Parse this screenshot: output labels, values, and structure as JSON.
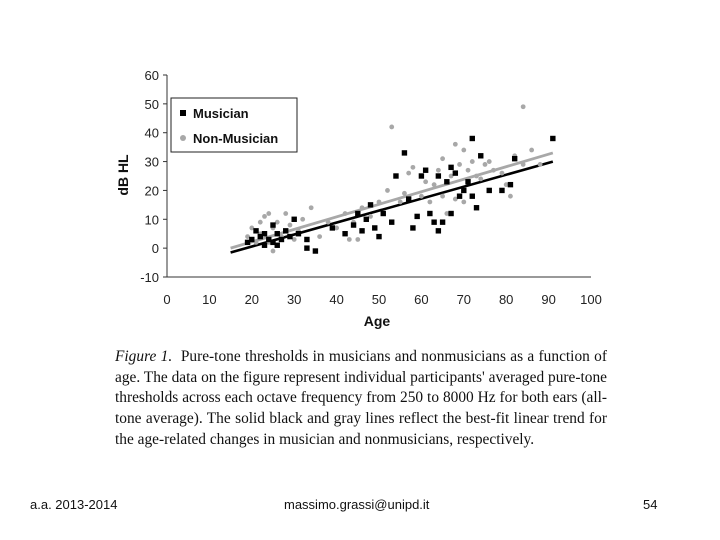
{
  "chart_data": {
    "type": "scatter",
    "xlabel": "Age",
    "ylabel": "dB HL",
    "xlim": [
      0,
      100
    ],
    "ylim": [
      -10,
      60
    ],
    "xticks": [
      0,
      10,
      20,
      30,
      40,
      50,
      60,
      70,
      80,
      90,
      100
    ],
    "yticks": [
      -10,
      0,
      10,
      20,
      30,
      40,
      50,
      60
    ],
    "legend_position": "top-left",
    "series": [
      {
        "name": "Musician",
        "marker": "square",
        "color": "#000000",
        "points": [
          [
            19,
            2
          ],
          [
            20,
            3
          ],
          [
            21,
            6
          ],
          [
            22,
            4
          ],
          [
            23,
            1
          ],
          [
            23,
            5
          ],
          [
            24,
            3
          ],
          [
            25,
            2
          ],
          [
            25,
            8
          ],
          [
            26,
            5
          ],
          [
            26,
            1
          ],
          [
            27,
            3
          ],
          [
            28,
            6
          ],
          [
            29,
            4
          ],
          [
            30,
            10
          ],
          [
            31,
            5
          ],
          [
            33,
            3
          ],
          [
            33,
            0
          ],
          [
            35,
            -1
          ],
          [
            39,
            7
          ],
          [
            42,
            5
          ],
          [
            44,
            8
          ],
          [
            45,
            12
          ],
          [
            46,
            6
          ],
          [
            47,
            10
          ],
          [
            48,
            15
          ],
          [
            49,
            7
          ],
          [
            50,
            4
          ],
          [
            51,
            12
          ],
          [
            53,
            9
          ],
          [
            54,
            25
          ],
          [
            56,
            33
          ],
          [
            57,
            17
          ],
          [
            58,
            7
          ],
          [
            59,
            11
          ],
          [
            60,
            25
          ],
          [
            61,
            27
          ],
          [
            62,
            12
          ],
          [
            63,
            9
          ],
          [
            64,
            6
          ],
          [
            64,
            25
          ],
          [
            65,
            9
          ],
          [
            66,
            23
          ],
          [
            67,
            12
          ],
          [
            67,
            28
          ],
          [
            68,
            26
          ],
          [
            69,
            18
          ],
          [
            70,
            20
          ],
          [
            71,
            23
          ],
          [
            72,
            18
          ],
          [
            72,
            38
          ],
          [
            73,
            14
          ],
          [
            74,
            32
          ],
          [
            76,
            20
          ],
          [
            79,
            20
          ],
          [
            81,
            22
          ],
          [
            82,
            31
          ],
          [
            91,
            38
          ]
        ],
        "fit": {
          "x": [
            15,
            91
          ],
          "y": [
            -1.5,
            30
          ]
        }
      },
      {
        "name": "Non-Musician",
        "marker": "circle",
        "color": "#a8a8a8",
        "points": [
          [
            19,
            4
          ],
          [
            20,
            7
          ],
          [
            21,
            2
          ],
          [
            22,
            9
          ],
          [
            22,
            5
          ],
          [
            23,
            11
          ],
          [
            24,
            2
          ],
          [
            24,
            12
          ],
          [
            25,
            7
          ],
          [
            25,
            -1
          ],
          [
            26,
            9
          ],
          [
            27,
            4
          ],
          [
            28,
            12
          ],
          [
            29,
            8
          ],
          [
            30,
            3
          ],
          [
            31,
            6
          ],
          [
            32,
            10
          ],
          [
            34,
            14
          ],
          [
            36,
            4
          ],
          [
            38,
            9
          ],
          [
            40,
            7
          ],
          [
            42,
            12
          ],
          [
            43,
            3
          ],
          [
            44,
            9
          ],
          [
            45,
            3
          ],
          [
            46,
            14
          ],
          [
            48,
            11
          ],
          [
            50,
            16
          ],
          [
            52,
            20
          ],
          [
            53,
            42
          ],
          [
            55,
            16
          ],
          [
            56,
            19
          ],
          [
            57,
            26
          ],
          [
            58,
            28
          ],
          [
            60,
            18
          ],
          [
            61,
            23
          ],
          [
            62,
            16
          ],
          [
            63,
            22
          ],
          [
            64,
            27
          ],
          [
            65,
            31
          ],
          [
            65,
            18
          ],
          [
            66,
            12
          ],
          [
            67,
            25
          ],
          [
            68,
            17
          ],
          [
            68,
            36
          ],
          [
            69,
            29
          ],
          [
            70,
            34
          ],
          [
            70,
            16
          ],
          [
            71,
            27
          ],
          [
            72,
            30
          ],
          [
            73,
            25
          ],
          [
            74,
            24
          ],
          [
            75,
            29
          ],
          [
            76,
            30
          ],
          [
            77,
            27
          ],
          [
            79,
            26
          ],
          [
            80,
            22
          ],
          [
            81,
            18
          ],
          [
            82,
            32
          ],
          [
            84,
            29
          ],
          [
            84,
            49
          ],
          [
            86,
            34
          ],
          [
            88,
            29
          ]
        ],
        "fit": {
          "x": [
            15,
            91
          ],
          "y": [
            0,
            33
          ]
        }
      }
    ]
  },
  "caption": {
    "label": "Figure 1.",
    "text": "Pure-tone thresholds in musicians and nonmusicians as a function of age. The data on the figure represent individual participants' averaged pure-tone thresholds across each octave frequency from 250 to 8000 Hz for both ears (all-tone average). The solid black and gray lines reflect the best-fit linear trend for the age-related changes in musician and nonmusicians, respectively."
  },
  "footer": {
    "left": "a.a. 2013-2014",
    "center": "massimo.grassi@unipd.it",
    "right": "54"
  }
}
